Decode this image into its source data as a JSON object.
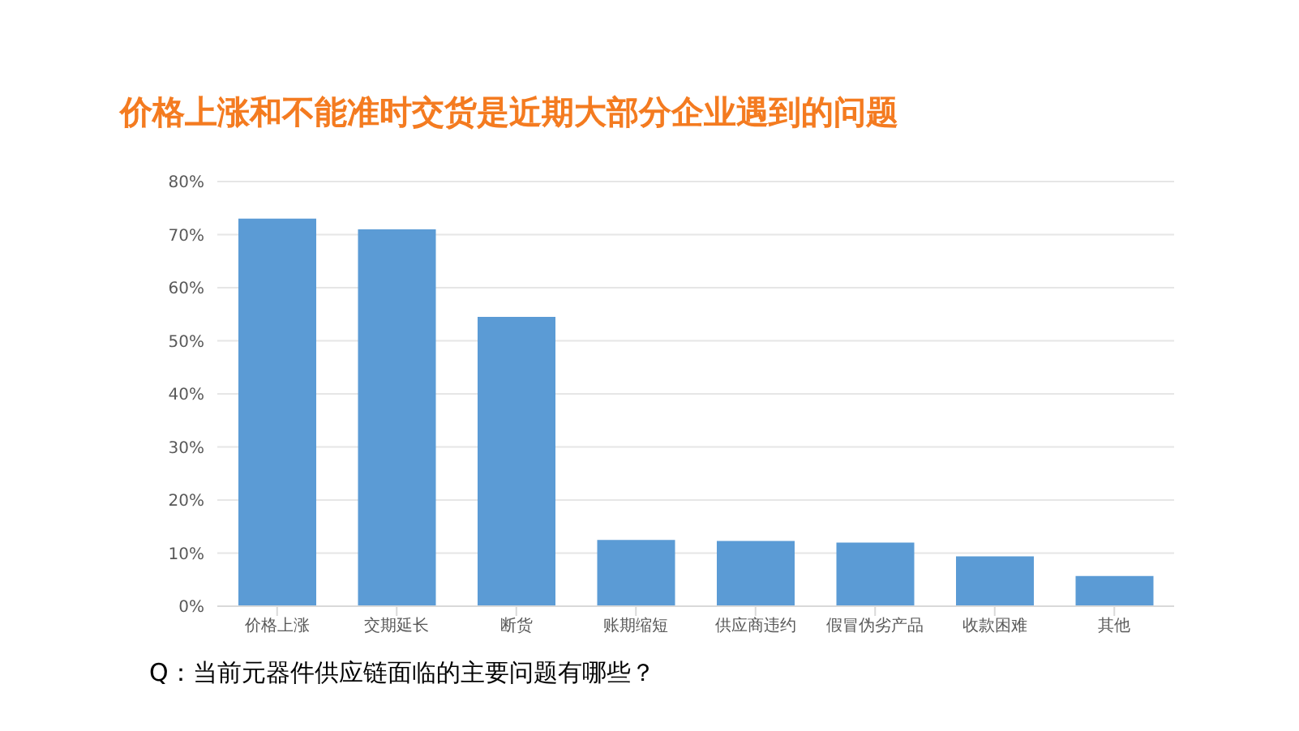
{
  "chart_data": {
    "type": "bar",
    "title": "价格上涨和不能准时交货是近期大部分企业遇到的问题",
    "categories": [
      "价格上涨",
      "交期延长",
      "断货",
      "账期缩短",
      "供应商违约",
      "假冒伪劣产品",
      "收款困难",
      "其他"
    ],
    "values": [
      73,
      71,
      54.5,
      12.5,
      12.3,
      12,
      9.4,
      5.7
    ],
    "color": "#5b9bd5",
    "ylim": [
      0,
      80
    ],
    "yticks": [
      {
        "value": 0,
        "label": "0%"
      },
      {
        "value": 10,
        "label": "10%"
      },
      {
        "value": 20,
        "label": "20%"
      },
      {
        "value": 30,
        "label": "30%"
      },
      {
        "value": 40,
        "label": "40%"
      },
      {
        "value": 50,
        "label": "50%"
      },
      {
        "value": 60,
        "label": "60%"
      },
      {
        "value": 70,
        "label": "70%"
      },
      {
        "value": 80,
        "label": "80%"
      }
    ],
    "grid": "y",
    "annotations": [
      "Q：当前元器件供应链面临的主要问题有哪些？"
    ]
  }
}
